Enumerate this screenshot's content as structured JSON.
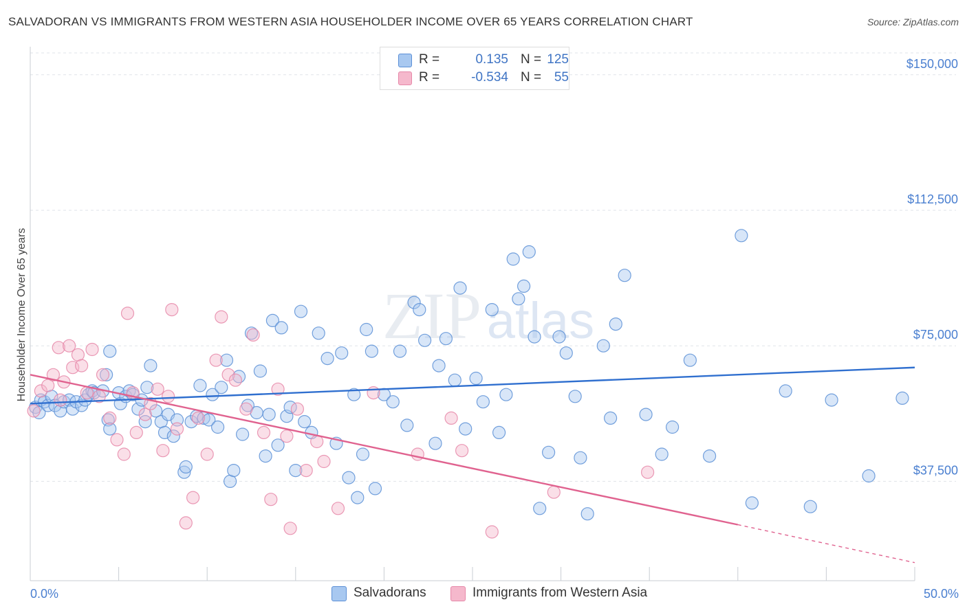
{
  "header": {
    "title": "SALVADORAN VS IMMIGRANTS FROM WESTERN ASIA HOUSEHOLDER INCOME OVER 65 YEARS CORRELATION CHART",
    "source": "Source: ZipAtlas.com"
  },
  "watermark": {
    "zip": "ZIP",
    "atlas": "atlas"
  },
  "legend_top": {
    "rows": [
      {
        "r_label": "R =",
        "r_value": "0.135",
        "n_label": "N =",
        "n_value": "125",
        "color": "#a8c8f0"
      },
      {
        "r_label": "R =",
        "r_value": "-0.534",
        "n_label": "N =",
        "n_value": "55",
        "color": "#f5b8cc"
      }
    ]
  },
  "chart_data": {
    "type": "scatter",
    "title": "SALVADORAN VS IMMIGRANTS FROM WESTERN ASIA HOUSEHOLDER INCOME OVER 65 YEARS CORRELATION CHART",
    "ylabel": "Householder Income Over 65 years",
    "xlabel": "",
    "xlim": [
      0,
      50
    ],
    "ylim": [
      10000,
      157000
    ],
    "x_tick_labels": [
      "0.0%",
      "50.0%"
    ],
    "y_ticks": [
      37500,
      75000,
      112500,
      150000
    ],
    "y_tick_labels": [
      "$37,500",
      "$75,000",
      "$112,500",
      "$150,000"
    ],
    "grid": true,
    "legend_position": "top-center and bottom",
    "series": [
      {
        "name": "Salvadorans",
        "color": "#5b8fd6",
        "fill": "#a8c8f0",
        "trend": {
          "x": [
            0,
            50
          ],
          "y": [
            59000,
            69000
          ]
        },
        "points": [
          [
            0.3,
            58000
          ],
          [
            0.5,
            56500
          ],
          [
            0.6,
            60000
          ],
          [
            0.8,
            59500
          ],
          [
            1,
            58500
          ],
          [
            1.2,
            61000
          ],
          [
            1.4,
            58500
          ],
          [
            1.7,
            57000
          ],
          [
            1.9,
            59500
          ],
          [
            2.2,
            60000
          ],
          [
            2.4,
            57500
          ],
          [
            2.6,
            59500
          ],
          [
            2.9,
            58500
          ],
          [
            3.1,
            60000
          ],
          [
            3.3,
            61500
          ],
          [
            3.5,
            62500
          ],
          [
            3.6,
            62000
          ],
          [
            4.1,
            62500
          ],
          [
            4.3,
            67000
          ],
          [
            4.4,
            54500
          ],
          [
            4.5,
            52000
          ],
          [
            5,
            62000
          ],
          [
            5.1,
            59000
          ],
          [
            5.4,
            61000
          ],
          [
            5.6,
            62500
          ],
          [
            5.8,
            61500
          ],
          [
            6.1,
            57500
          ],
          [
            6.3,
            60000
          ],
          [
            6.5,
            54000
          ],
          [
            6.6,
            63500
          ],
          [
            6.8,
            69500
          ],
          [
            7.1,
            57000
          ],
          [
            7.4,
            54000
          ],
          [
            7.6,
            51000
          ],
          [
            7.8,
            56000
          ],
          [
            8.1,
            50000
          ],
          [
            8.3,
            54500
          ],
          [
            8.7,
            40000
          ],
          [
            8.8,
            41500
          ],
          [
            9.1,
            54000
          ],
          [
            9.4,
            55500
          ],
          [
            9.6,
            64000
          ],
          [
            9.8,
            55000
          ],
          [
            10.1,
            54500
          ],
          [
            10.3,
            61500
          ],
          [
            10.6,
            52500
          ],
          [
            10.8,
            63500
          ],
          [
            11.1,
            71000
          ],
          [
            11.3,
            37500
          ],
          [
            11.5,
            40500
          ],
          [
            11.8,
            66500
          ],
          [
            12,
            50500
          ],
          [
            12.3,
            58500
          ],
          [
            12.5,
            78500
          ],
          [
            12.8,
            56500
          ],
          [
            13,
            68000
          ],
          [
            13.3,
            44500
          ],
          [
            13.5,
            56000
          ],
          [
            13.7,
            82000
          ],
          [
            14,
            47500
          ],
          [
            14.2,
            80000
          ],
          [
            14.5,
            55500
          ],
          [
            14.7,
            58000
          ],
          [
            15,
            40500
          ],
          [
            15.3,
            84500
          ],
          [
            15.5,
            54000
          ],
          [
            15.9,
            51000
          ],
          [
            16.3,
            78500
          ],
          [
            16.8,
            71500
          ],
          [
            17.3,
            48000
          ],
          [
            17.6,
            73000
          ],
          [
            18,
            38500
          ],
          [
            18.3,
            61500
          ],
          [
            18.5,
            33000
          ],
          [
            18.8,
            45000
          ],
          [
            19,
            79500
          ],
          [
            19.3,
            73500
          ],
          [
            19.5,
            35500
          ],
          [
            20,
            61500
          ],
          [
            20.5,
            59500
          ],
          [
            20.9,
            73500
          ],
          [
            21.3,
            53000
          ],
          [
            21.7,
            87000
          ],
          [
            22,
            85000
          ],
          [
            22.3,
            76500
          ],
          [
            22.9,
            48000
          ],
          [
            23.1,
            69500
          ],
          [
            23.5,
            77000
          ],
          [
            24,
            65500
          ],
          [
            24.3,
            91000
          ],
          [
            24.6,
            52000
          ],
          [
            25.2,
            66000
          ],
          [
            25.6,
            59500
          ],
          [
            26.1,
            85000
          ],
          [
            26.5,
            51000
          ],
          [
            26.9,
            61500
          ],
          [
            27.3,
            99000
          ],
          [
            27.6,
            88000
          ],
          [
            27.9,
            91500
          ],
          [
            28.2,
            101000
          ],
          [
            28.5,
            77500
          ],
          [
            28.8,
            30000
          ],
          [
            29.3,
            45500
          ],
          [
            29.9,
            77500
          ],
          [
            30.3,
            73000
          ],
          [
            30.8,
            61000
          ],
          [
            31.1,
            44000
          ],
          [
            31.5,
            28500
          ],
          [
            32.4,
            75000
          ],
          [
            32.8,
            55000
          ],
          [
            33.1,
            81000
          ],
          [
            33.6,
            94500
          ],
          [
            34.8,
            56000
          ],
          [
            35.7,
            45000
          ],
          [
            36.3,
            52500
          ],
          [
            37.3,
            71000
          ],
          [
            38.4,
            44500
          ],
          [
            40.2,
            105500
          ],
          [
            40.8,
            31500
          ],
          [
            42.7,
            62500
          ],
          [
            44.1,
            30500
          ],
          [
            45.3,
            60000
          ],
          [
            47.4,
            39000
          ],
          [
            49.3,
            60500
          ],
          [
            4.5,
            73500
          ]
        ]
      },
      {
        "name": "Immigrants from Western Asia",
        "color": "#e687a8",
        "fill": "#f5b8cc",
        "trend": {
          "x": [
            0,
            40
          ],
          "y": [
            67000,
            25500
          ],
          "dash_x": [
            40,
            50
          ],
          "dash_y": [
            25500,
            15000
          ]
        },
        "points": [
          [
            0.2,
            57000
          ],
          [
            0.6,
            62500
          ],
          [
            1,
            64000
          ],
          [
            1.3,
            67000
          ],
          [
            1.6,
            74500
          ],
          [
            1.9,
            65000
          ],
          [
            2.2,
            75000
          ],
          [
            2.4,
            69000
          ],
          [
            2.7,
            72500
          ],
          [
            2.9,
            69500
          ],
          [
            3.2,
            62000
          ],
          [
            3.5,
            74000
          ],
          [
            3.9,
            61000
          ],
          [
            4.1,
            67000
          ],
          [
            4.5,
            55000
          ],
          [
            4.9,
            49000
          ],
          [
            5.3,
            45000
          ],
          [
            5.5,
            84000
          ],
          [
            5.8,
            62000
          ],
          [
            6,
            51000
          ],
          [
            6.5,
            56000
          ],
          [
            6.8,
            59000
          ],
          [
            7.2,
            63000
          ],
          [
            7.5,
            46000
          ],
          [
            7.8,
            61000
          ],
          [
            8,
            85000
          ],
          [
            8.3,
            52000
          ],
          [
            8.8,
            26000
          ],
          [
            9.2,
            33000
          ],
          [
            9.5,
            55000
          ],
          [
            10,
            45000
          ],
          [
            10.5,
            71000
          ],
          [
            10.8,
            83000
          ],
          [
            11.2,
            67000
          ],
          [
            11.6,
            65500
          ],
          [
            12.2,
            57500
          ],
          [
            12.6,
            78000
          ],
          [
            13.2,
            51000
          ],
          [
            13.6,
            32500
          ],
          [
            14,
            63000
          ],
          [
            14.5,
            50000
          ],
          [
            14.7,
            24500
          ],
          [
            15.1,
            57500
          ],
          [
            15.6,
            40500
          ],
          [
            16.2,
            48500
          ],
          [
            16.6,
            43000
          ],
          [
            17.4,
            30000
          ],
          [
            19.4,
            62000
          ],
          [
            21.9,
            45000
          ],
          [
            23.8,
            55000
          ],
          [
            24.4,
            46000
          ],
          [
            26.1,
            23500
          ],
          [
            29.6,
            34500
          ],
          [
            34.9,
            40000
          ],
          [
            1.7,
            60000
          ]
        ]
      }
    ]
  },
  "legend_bottom": {
    "items": [
      {
        "label": "Salvadorans",
        "color": "#a8c8f0",
        "border": "#5b8fd6"
      },
      {
        "label": "Immigrants from Western Asia",
        "color": "#f5b8cc",
        "border": "#e687a8"
      }
    ]
  }
}
